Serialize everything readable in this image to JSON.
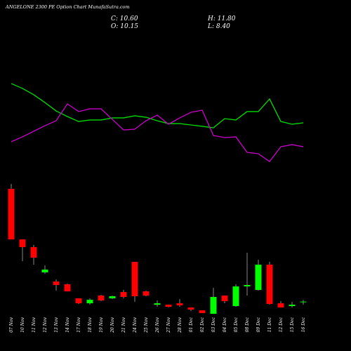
{
  "chart_data": {
    "type": "candlestick",
    "title": "ANGELONE 2300 PE Option Chart MunafaSutra.com",
    "stats": {
      "close": "C: 10.60",
      "open": "O: 10.15",
      "high": "H: 11.80",
      "low": "L: 8.40"
    },
    "categories": [
      "07 Nov",
      "10 Nov",
      "11 Nov",
      "12 Nov",
      "13 Nov",
      "14 Nov",
      "17 Nov",
      "18 Nov",
      "19 Nov",
      "20 Nov",
      "21 Nov",
      "24 Nov",
      "25 Nov",
      "26 Nov",
      "27 Nov",
      "28 Nov",
      "01 Dec",
      "02 Dec",
      "03 Dec",
      "04 Dec",
      "05 Dec",
      "08 Dec",
      "09 Dec",
      "11 Dec",
      "12 Dec",
      "15 Dec",
      "16 Dec"
    ],
    "open": [
      90.9,
      54.9,
      49.4,
      31.4,
      24.9,
      22.9,
      12.9,
      9.4,
      14.9,
      12.9,
      17.4,
      38.9,
      17.9,
      8.4,
      8.4,
      9.4,
      6.4,
      4.4,
      1.9,
      14.9,
      7.4,
      21.4,
      18.9,
      36.9,
      9.4,
      7.4,
      10.15
    ],
    "high": [
      94.4,
      54.9,
      50.9,
      36.4,
      26.4,
      23.4,
      12.9,
      12.9,
      15.4,
      14.9,
      18.9,
      38.9,
      18.4,
      11.4,
      8.4,
      12.4,
      6.4,
      4.4,
      20.4,
      14.9,
      22.9,
      45.4,
      40.4,
      38.9,
      10.9,
      10.4,
      11.8
    ],
    "low": [
      54.9,
      39.4,
      36.9,
      30.4,
      18.4,
      17.9,
      8.9,
      8.4,
      10.9,
      12.4,
      12.9,
      10.4,
      14.4,
      6.9,
      6.4,
      6.9,
      3.9,
      2.4,
      1.9,
      9.4,
      6.9,
      14.9,
      18.4,
      8.4,
      6.4,
      6.4,
      8.4
    ],
    "close": [
      54.9,
      49.4,
      41.9,
      33.4,
      22.4,
      17.9,
      9.4,
      11.9,
      11.4,
      14.4,
      13.9,
      14.4,
      14.9,
      9.4,
      6.9,
      7.9,
      4.9,
      2.4,
      13.9,
      10.9,
      21.4,
      22.4,
      36.9,
      8.9,
      6.4,
      8.4,
      10.6
    ],
    "up_color": "#00ff00",
    "down_color": "#ff0000",
    "ylim": [
      0,
      100
    ],
    "lines": [
      {
        "color": "#00dd00",
        "axis": "y2",
        "values": [
          87.3,
          82.7,
          76.7,
          69.3,
          61.3,
          56,
          51.3,
          52.7,
          52.7,
          54.7,
          54.7,
          56.7,
          55.3,
          52,
          49.3,
          49.3,
          48,
          46.7,
          45.3,
          54,
          52.7,
          60.7,
          60.7,
          72.7,
          51.3,
          48.7,
          50
        ]
      },
      {
        "color": "#cc00cc",
        "axis": "y2",
        "values": [
          32,
          36.7,
          42,
          47.3,
          52,
          68,
          60.7,
          63.3,
          63.3,
          53.3,
          43.3,
          44,
          52,
          57.3,
          48.7,
          54.7,
          60,
          62,
          38,
          36,
          36.7,
          22,
          20.7,
          13.3,
          27.3,
          29.3,
          27.3
        ]
      }
    ],
    "y2lim": [
      0,
      100
    ]
  }
}
